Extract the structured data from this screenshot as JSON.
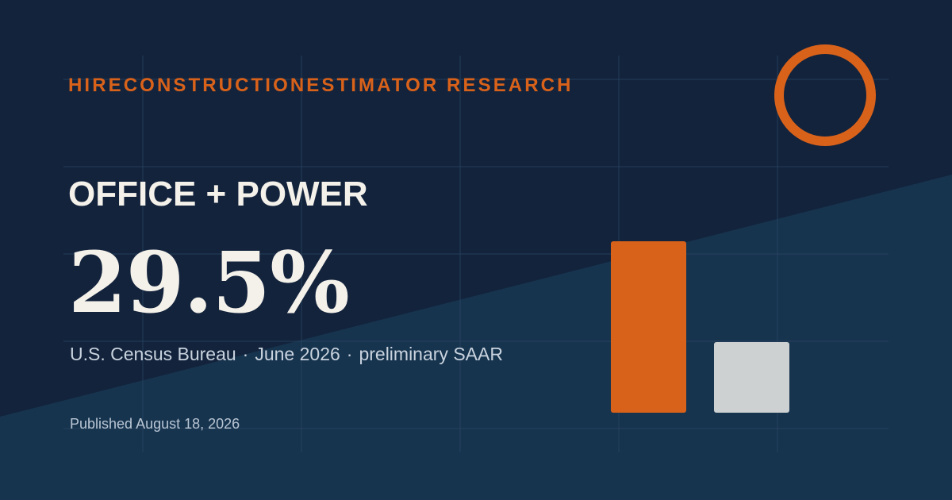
{
  "brand": {
    "text": "HIRECONSTRUCTIONESTIMATOR RESEARCH",
    "color": "#d9621a"
  },
  "headline": "OFFICE + POWER",
  "metric": {
    "value": "29.5%"
  },
  "source": {
    "agency": "U.S. Census Bureau",
    "separator": "·",
    "period": "June 2026",
    "note": "preliminary SAAR"
  },
  "published": "Published August 18, 2026",
  "colors": {
    "background_dark": "#13233c",
    "background_light": "#17344f",
    "accent": "#d9621a",
    "bar_secondary": "#cdd1d1",
    "text_primary": "#f4f1ea",
    "text_secondary": "#c9d3de"
  },
  "decor": {
    "ring_icon": "orange-ring-icon"
  },
  "bars": {
    "levels": [
      1.0,
      0.41
    ]
  }
}
